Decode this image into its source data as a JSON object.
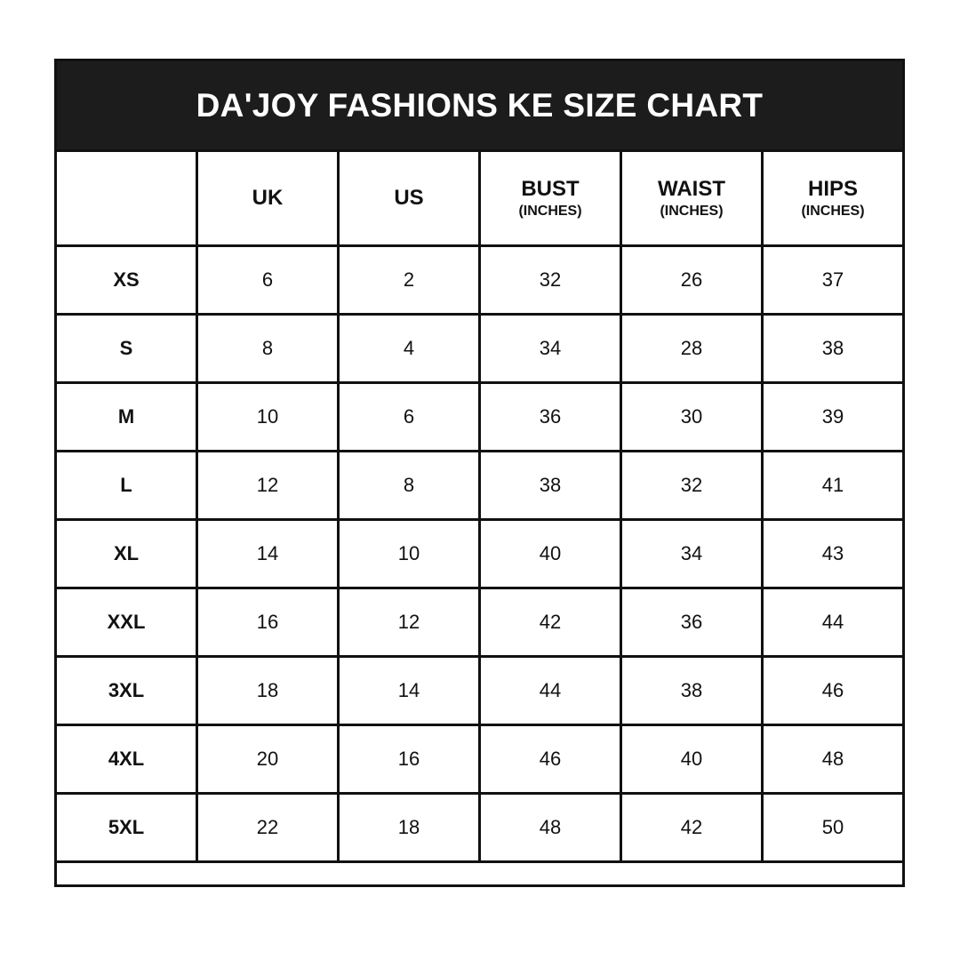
{
  "chart_data": {
    "type": "table",
    "title": "DA'JOY FASHIONS KE SIZE CHART",
    "columns": [
      {
        "label": "",
        "unit": ""
      },
      {
        "label": "UK",
        "unit": ""
      },
      {
        "label": "US",
        "unit": ""
      },
      {
        "label": "BUST",
        "unit": "(INCHES)"
      },
      {
        "label": "WAIST",
        "unit": "(INCHES)"
      },
      {
        "label": "HIPS",
        "unit": "(INCHES)"
      }
    ],
    "rows": [
      [
        "XS",
        "6",
        "2",
        "32",
        "26",
        "37"
      ],
      [
        "S",
        "8",
        "4",
        "34",
        "28",
        "38"
      ],
      [
        "M",
        "10",
        "6",
        "36",
        "30",
        "39"
      ],
      [
        "L",
        "12",
        "8",
        "38",
        "32",
        "41"
      ],
      [
        "XL",
        "14",
        "10",
        "40",
        "34",
        "43"
      ],
      [
        "XXL",
        "16",
        "12",
        "42",
        "36",
        "44"
      ],
      [
        "3XL",
        "18",
        "14",
        "44",
        "38",
        "46"
      ],
      [
        "4XL",
        "20",
        "16",
        "46",
        "40",
        "48"
      ],
      [
        "5XL",
        "22",
        "18",
        "48",
        "42",
        "50"
      ]
    ],
    "colors": {
      "title_background": "#1c1c1c",
      "title_text": "#ffffff",
      "border": "#111111"
    }
  }
}
